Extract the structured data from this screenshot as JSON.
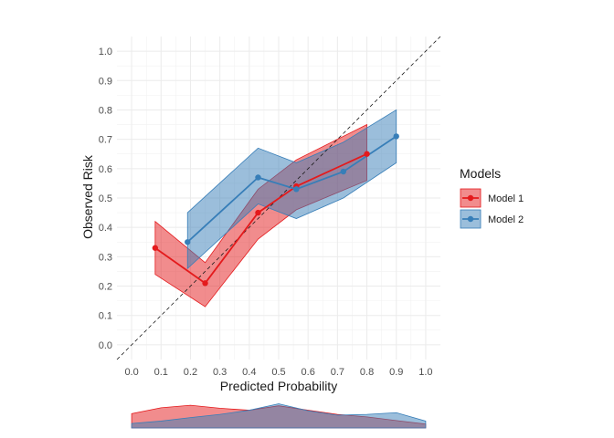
{
  "chart_data": {
    "type": "line",
    "title": "",
    "xlabel": "Predicted Probability",
    "ylabel": "Observed Risk",
    "xlim": [
      -0.05,
      1.05
    ],
    "ylim": [
      -0.05,
      1.05
    ],
    "x_ticks": [
      "0.0",
      "0.1",
      "0.2",
      "0.3",
      "0.4",
      "0.5",
      "0.6",
      "0.7",
      "0.8",
      "0.9",
      "1.0"
    ],
    "y_ticks": [
      "0.0",
      "0.1",
      "0.2",
      "0.3",
      "0.4",
      "0.5",
      "0.6",
      "0.7",
      "0.8",
      "0.9",
      "1.0"
    ],
    "grid": true,
    "reference_line": "dashed diagonal y = x",
    "legend_title": "Models",
    "legend_position": "right",
    "series": [
      {
        "name": "Model 1",
        "color": "#e41a1c",
        "x": [
          0.08,
          0.25,
          0.43,
          0.56,
          0.8
        ],
        "y": [
          0.33,
          0.21,
          0.45,
          0.54,
          0.65
        ],
        "lower": [
          0.24,
          0.13,
          0.36,
          0.46,
          0.56
        ],
        "upper": [
          0.42,
          0.28,
          0.53,
          0.63,
          0.75
        ]
      },
      {
        "name": "Model 2",
        "color": "#377eb8",
        "x": [
          0.19,
          0.43,
          0.56,
          0.72,
          0.9
        ],
        "y": [
          0.35,
          0.57,
          0.53,
          0.59,
          0.71
        ],
        "lower": [
          0.26,
          0.48,
          0.43,
          0.5,
          0.62
        ],
        "upper": [
          0.45,
          0.67,
          0.62,
          0.69,
          0.8
        ]
      }
    ],
    "density": [
      {
        "name": "Model 1",
        "x": [
          0.0,
          0.1,
          0.2,
          0.3,
          0.4,
          0.5,
          0.6,
          0.7,
          0.8,
          0.9,
          1.0
        ],
        "density": [
          0.58,
          0.82,
          0.92,
          0.8,
          0.72,
          0.9,
          0.72,
          0.55,
          0.45,
          0.3,
          0.16
        ]
      },
      {
        "name": "Model 2",
        "x": [
          0.0,
          0.1,
          0.2,
          0.3,
          0.4,
          0.5,
          0.6,
          0.7,
          0.8,
          0.9,
          1.0
        ],
        "density": [
          0.18,
          0.28,
          0.42,
          0.55,
          0.72,
          0.98,
          0.7,
          0.52,
          0.55,
          0.62,
          0.28
        ]
      }
    ]
  }
}
